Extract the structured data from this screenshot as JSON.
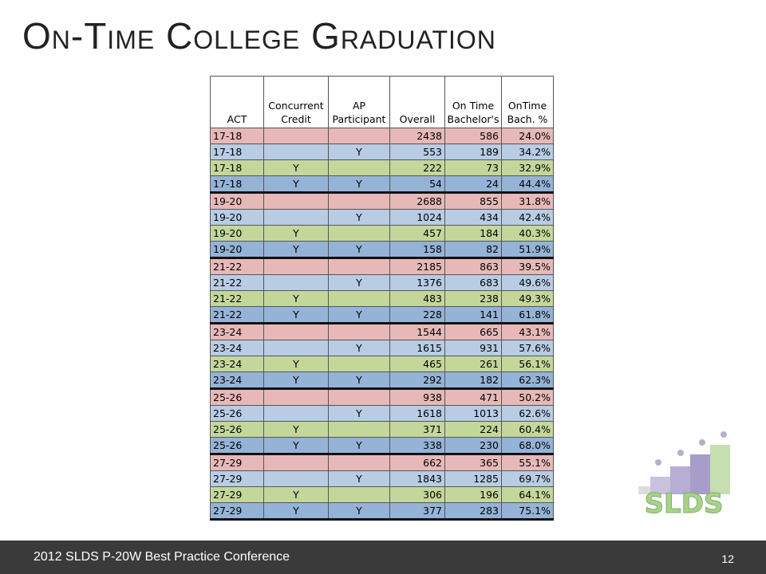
{
  "header": {
    "title": "On-Time College Graduation"
  },
  "table": {
    "columns": [
      "ACT",
      "Concurrent Credit",
      "AP Participant",
      "Overall",
      "On Time Bachelor's",
      "OnTime Bach. %"
    ],
    "rows": [
      [
        "17-18",
        null,
        null,
        2438,
        586,
        "24.0%"
      ],
      [
        "17-18",
        null,
        "Y",
        553,
        189,
        "34.2%"
      ],
      [
        "17-18",
        "Y",
        null,
        222,
        73,
        "32.9%"
      ],
      [
        "17-18",
        "Y",
        "Y",
        54,
        24,
        "44.4%"
      ],
      [
        "19-20",
        null,
        null,
        2688,
        855,
        "31.8%"
      ],
      [
        "19-20",
        null,
        "Y",
        1024,
        434,
        "42.4%"
      ],
      [
        "19-20",
        "Y",
        null,
        457,
        184,
        "40.3%"
      ],
      [
        "19-20",
        "Y",
        "Y",
        158,
        82,
        "51.9%"
      ],
      [
        "21-22",
        null,
        null,
        2185,
        863,
        "39.5%"
      ],
      [
        "21-22",
        null,
        "Y",
        1376,
        683,
        "49.6%"
      ],
      [
        "21-22",
        "Y",
        null,
        483,
        238,
        "49.3%"
      ],
      [
        "21-22",
        "Y",
        "Y",
        228,
        141,
        "61.8%"
      ],
      [
        "23-24",
        null,
        null,
        1544,
        665,
        "43.1%"
      ],
      [
        "23-24",
        null,
        "Y",
        1615,
        931,
        "57.6%"
      ],
      [
        "23-24",
        "Y",
        null,
        465,
        261,
        "56.1%"
      ],
      [
        "23-24",
        "Y",
        "Y",
        292,
        182,
        "62.3%"
      ],
      [
        "25-26",
        null,
        null,
        938,
        471,
        "50.2%"
      ],
      [
        "25-26",
        null,
        "Y",
        1618,
        1013,
        "62.6%"
      ],
      [
        "25-26",
        "Y",
        null,
        371,
        224,
        "60.4%"
      ],
      [
        "25-26",
        "Y",
        "Y",
        338,
        230,
        "68.0%"
      ],
      [
        "27-29",
        null,
        null,
        662,
        365,
        "55.1%"
      ],
      [
        "27-29",
        null,
        "Y",
        1843,
        1285,
        "69.7%"
      ],
      [
        "27-29",
        "Y",
        null,
        306,
        196,
        "64.1%"
      ],
      [
        "27-29",
        "Y",
        "Y",
        377,
        283,
        "75.1%"
      ]
    ]
  },
  "logo": {
    "text": "SLDS"
  },
  "footer": {
    "text": "2012 SLDS P-20W Best Practice Conference",
    "page": "12"
  }
}
